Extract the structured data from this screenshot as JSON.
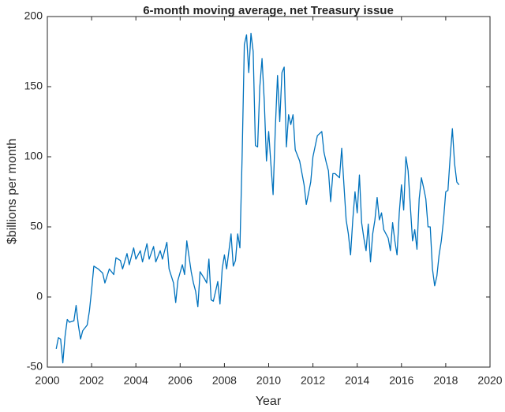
{
  "chart_data": {
    "type": "line",
    "title": "6-month moving average, net Treasury issue",
    "x_label": "Year",
    "y_label": "$billions per month",
    "x": [
      2000.4,
      2000.5,
      2000.6,
      2000.7,
      2000.8,
      2000.9,
      2001.0,
      2001.2,
      2001.3,
      2001.4,
      2001.5,
      2001.6,
      2001.8,
      2001.9,
      2002.0,
      2002.1,
      2002.3,
      2002.5,
      2002.6,
      2002.8,
      2003.0,
      2003.1,
      2003.3,
      2003.4,
      2003.6,
      2003.7,
      2003.9,
      2004.0,
      2004.2,
      2004.3,
      2004.5,
      2004.6,
      2004.8,
      2004.9,
      2005.1,
      2005.2,
      2005.4,
      2005.5,
      2005.7,
      2005.8,
      2005.9,
      2006.1,
      2006.2,
      2006.3,
      2006.5,
      2006.6,
      2006.7,
      2006.8,
      2006.9,
      2007.1,
      2007.2,
      2007.3,
      2007.4,
      2007.5,
      2007.7,
      2007.8,
      2007.9,
      2008.0,
      2008.1,
      2008.3,
      2008.4,
      2008.5,
      2008.6,
      2008.7,
      2008.8,
      2008.9,
      2009.0,
      2009.1,
      2009.2,
      2009.3,
      2009.4,
      2009.5,
      2009.6,
      2009.7,
      2009.8,
      2009.9,
      2010.0,
      2010.1,
      2010.2,
      2010.3,
      2010.4,
      2010.5,
      2010.6,
      2010.7,
      2010.8,
      2010.9,
      2011.0,
      2011.1,
      2011.2,
      2011.4,
      2011.6,
      2011.7,
      2011.9,
      2012.0,
      2012.2,
      2012.4,
      2012.5,
      2012.6,
      2012.7,
      2012.8,
      2012.9,
      2013.0,
      2013.2,
      2013.3,
      2013.4,
      2013.5,
      2013.6,
      2013.7,
      2013.8,
      2013.9,
      2014.0,
      2014.1,
      2014.2,
      2014.3,
      2014.4,
      2014.5,
      2014.6,
      2014.7,
      2014.8,
      2014.9,
      2015.0,
      2015.1,
      2015.2,
      2015.4,
      2015.5,
      2015.6,
      2015.7,
      2015.8,
      2015.9,
      2016.0,
      2016.1,
      2016.2,
      2016.3,
      2016.4,
      2016.5,
      2016.6,
      2016.7,
      2016.8,
      2016.9,
      2017.0,
      2017.1,
      2017.2,
      2017.3,
      2017.4,
      2017.5,
      2017.6,
      2017.7,
      2017.8,
      2017.9,
      2018.0,
      2018.1,
      2018.2,
      2018.3,
      2018.4,
      2018.5,
      2018.6
    ],
    "values": [
      -37,
      -29,
      -30,
      -47,
      -28,
      -16,
      -18,
      -17,
      -6,
      -20,
      -30,
      -24,
      -20,
      -10,
      5,
      22,
      20,
      17,
      10,
      20,
      16,
      28,
      26,
      20,
      31,
      23,
      35,
      27,
      33,
      25,
      38,
      27,
      36,
      25,
      33,
      27,
      39,
      20,
      10,
      -4,
      12,
      23,
      16,
      40,
      18,
      10,
      4,
      -7,
      18,
      13,
      10,
      27,
      -2,
      -3,
      11,
      -5,
      20,
      30,
      20,
      45,
      22,
      26,
      45,
      35,
      100,
      180,
      187,
      160,
      188,
      175,
      108,
      107,
      150,
      170,
      140,
      97,
      118,
      95,
      73,
      120,
      158,
      125,
      160,
      164,
      107,
      130,
      123,
      130,
      105,
      97,
      80,
      66,
      82,
      100,
      115,
      118,
      103,
      96,
      90,
      68,
      88,
      88,
      85,
      106,
      80,
      55,
      45,
      30,
      55,
      75,
      60,
      87,
      53,
      42,
      33,
      52,
      25,
      45,
      55,
      71,
      55,
      60,
      48,
      42,
      33,
      53,
      40,
      30,
      60,
      80,
      62,
      100,
      90,
      65,
      40,
      48,
      34,
      70,
      85,
      78,
      70,
      50,
      50,
      20,
      8,
      15,
      30,
      40,
      55,
      75,
      76,
      100,
      120,
      95,
      82,
      80
    ],
    "color": "#0072bd",
    "xlim": [
      2000,
      2020
    ],
    "xticks": [
      2000,
      2002,
      2004,
      2006,
      2008,
      2010,
      2012,
      2014,
      2016,
      2018,
      2020
    ],
    "ylim": [
      -50,
      200
    ],
    "yticks": [
      -50,
      0,
      50,
      100,
      150,
      200
    ]
  }
}
